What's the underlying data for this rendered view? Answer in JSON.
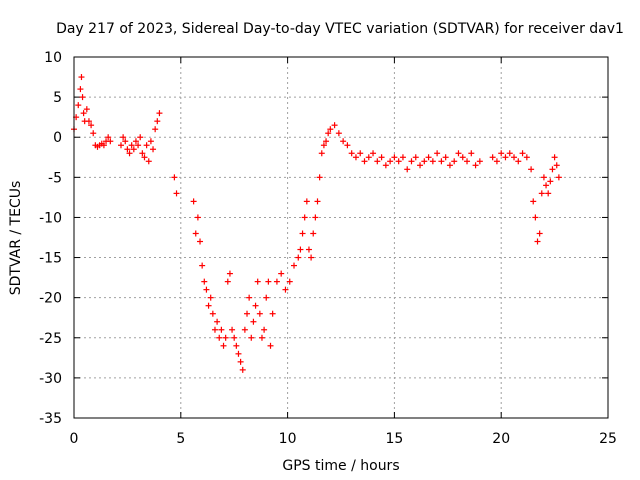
{
  "chart_data": {
    "type": "scatter",
    "title": "Day 217 of 2023, Sidereal Day-to-day VTEC variation (SDTVAR) for receiver dav1",
    "xlabel": "GPS time / hours",
    "ylabel": "SDTVAR / TECUs",
    "xlim": [
      0,
      25
    ],
    "ylim": [
      -35,
      10
    ],
    "xticks": [
      0,
      5,
      10,
      15,
      20,
      25
    ],
    "yticks": [
      10,
      5,
      0,
      -5,
      -10,
      -15,
      -20,
      -25,
      -30,
      -35
    ],
    "grid": true,
    "marker": "+",
    "color": "#ff0000",
    "series": [
      {
        "name": "dav1",
        "x": [
          0.0,
          0.1,
          0.2,
          0.3,
          0.35,
          0.4,
          0.45,
          0.5,
          0.6,
          0.7,
          0.8,
          0.9,
          1.0,
          1.1,
          1.2,
          1.3,
          1.4,
          1.5,
          1.6,
          1.7,
          2.2,
          2.3,
          2.4,
          2.5,
          2.6,
          2.7,
          2.8,
          2.9,
          3.0,
          3.1,
          3.2,
          3.3,
          3.4,
          3.5,
          3.6,
          3.7,
          3.8,
          3.9,
          4.0,
          4.7,
          4.8,
          5.6,
          5.7,
          5.8,
          5.9,
          6.0,
          6.1,
          6.2,
          6.3,
          6.4,
          6.5,
          6.6,
          6.7,
          6.8,
          6.9,
          7.0,
          7.1,
          7.2,
          7.3,
          7.4,
          7.5,
          7.6,
          7.7,
          7.8,
          7.9,
          8.0,
          8.1,
          8.2,
          8.3,
          8.4,
          8.5,
          8.6,
          8.7,
          8.8,
          8.9,
          9.0,
          9.1,
          9.2,
          9.3,
          9.5,
          9.7,
          9.9,
          10.1,
          10.3,
          10.5,
          10.6,
          10.7,
          10.8,
          10.9,
          11.0,
          11.1,
          11.2,
          11.3,
          11.4,
          11.5,
          11.6,
          11.7,
          11.8,
          11.9,
          12.0,
          12.2,
          12.4,
          12.6,
          12.8,
          13.0,
          13.2,
          13.4,
          13.6,
          13.8,
          14.0,
          14.2,
          14.4,
          14.6,
          14.8,
          15.0,
          15.2,
          15.4,
          15.6,
          15.8,
          16.0,
          16.2,
          16.4,
          16.6,
          16.8,
          17.0,
          17.2,
          17.4,
          17.6,
          17.8,
          18.0,
          18.2,
          18.4,
          18.6,
          18.8,
          19.0,
          19.6,
          19.8,
          20.0,
          20.2,
          20.4,
          20.6,
          20.8,
          21.0,
          21.2,
          21.4,
          21.5,
          21.6,
          21.7,
          21.8,
          21.9,
          22.0,
          22.1,
          22.2,
          22.3,
          22.4,
          22.5,
          22.6,
          22.7
        ],
        "y": [
          1.0,
          2.5,
          4.0,
          6.0,
          7.5,
          5.0,
          3.0,
          2.0,
          3.5,
          2.0,
          1.5,
          0.5,
          -1.0,
          -1.2,
          -1.0,
          -0.8,
          -1.0,
          -0.5,
          0.0,
          -0.5,
          -1.0,
          0.0,
          -0.5,
          -1.5,
          -2.0,
          -1.0,
          -1.5,
          -0.5,
          -1.0,
          0.0,
          -2.0,
          -2.5,
          -1.0,
          -3.0,
          -0.5,
          -1.5,
          1.0,
          2.0,
          3.0,
          -5.0,
          -7.0,
          -8.0,
          -12.0,
          -10.0,
          -13.0,
          -16.0,
          -18.0,
          -19.0,
          -21.0,
          -20.0,
          -22.0,
          -24.0,
          -23.0,
          -25.0,
          -24.0,
          -26.0,
          -25.0,
          -18.0,
          -17.0,
          -24.0,
          -25.0,
          -26.0,
          -27.0,
          -28.0,
          -29.0,
          -24.0,
          -22.0,
          -20.0,
          -25.0,
          -23.0,
          -21.0,
          -18.0,
          -22.0,
          -25.0,
          -24.0,
          -20.0,
          -18.0,
          -26.0,
          -22.0,
          -18.0,
          -17.0,
          -19.0,
          -18.0,
          -16.0,
          -15.0,
          -14.0,
          -12.0,
          -10.0,
          -8.0,
          -14.0,
          -15.0,
          -12.0,
          -10.0,
          -8.0,
          -5.0,
          -2.0,
          -1.0,
          -0.5,
          0.5,
          1.0,
          1.5,
          0.5,
          -0.5,
          -1.0,
          -2.0,
          -2.5,
          -2.0,
          -3.0,
          -2.5,
          -2.0,
          -3.0,
          -2.5,
          -3.5,
          -3.0,
          -2.5,
          -3.0,
          -2.5,
          -4.0,
          -3.0,
          -2.5,
          -3.5,
          -3.0,
          -2.5,
          -3.0,
          -2.0,
          -3.0,
          -2.5,
          -3.5,
          -3.0,
          -2.0,
          -2.5,
          -3.0,
          -2.0,
          -3.5,
          -3.0,
          -2.5,
          -3.0,
          -2.0,
          -2.5,
          -2.0,
          -2.5,
          -3.0,
          -2.0,
          -2.5,
          -4.0,
          -8.0,
          -10.0,
          -13.0,
          -12.0,
          -7.0,
          -5.0,
          -6.0,
          -7.0,
          -5.5,
          -4.0,
          -2.5,
          -3.5,
          -5.0
        ]
      }
    ]
  }
}
